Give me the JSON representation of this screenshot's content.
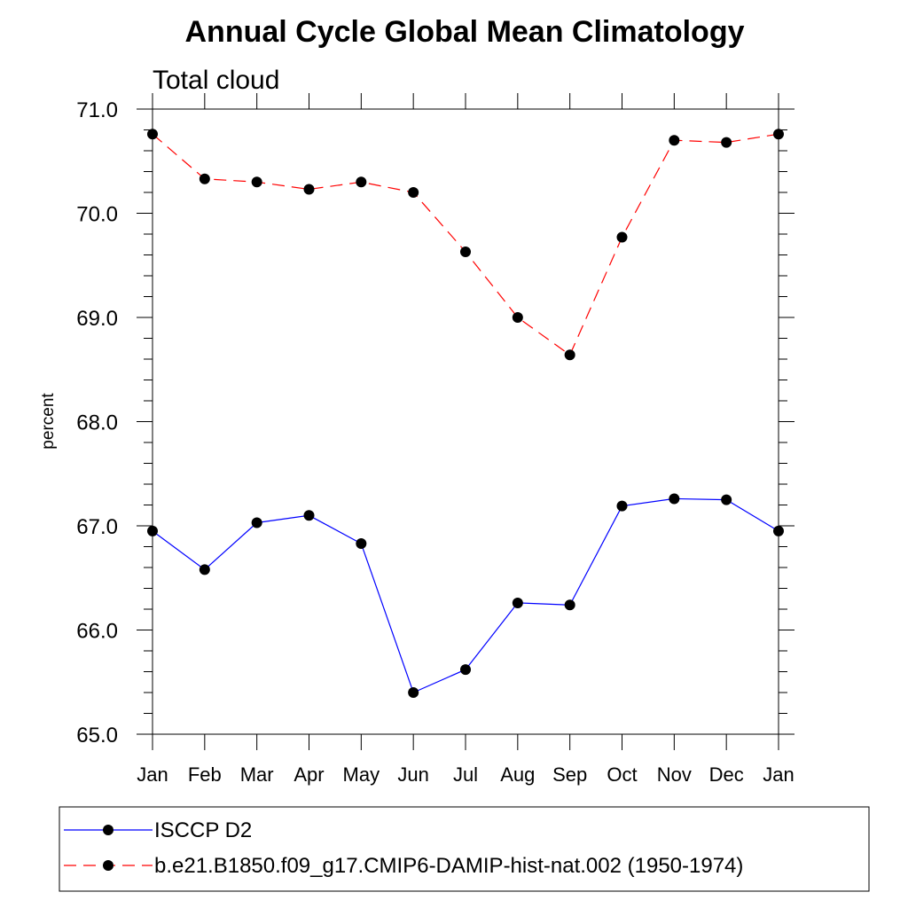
{
  "chart_data": {
    "type": "line",
    "title": "Annual Cycle Global Mean Climatology",
    "subtitle": "Total cloud",
    "xlabel": "",
    "ylabel": "percent",
    "categories": [
      "Jan",
      "Feb",
      "Mar",
      "Apr",
      "May",
      "Jun",
      "Jul",
      "Aug",
      "Sep",
      "Oct",
      "Nov",
      "Dec",
      "Jan"
    ],
    "yticks": [
      "65.0",
      "66.0",
      "67.0",
      "68.0",
      "69.0",
      "70.0",
      "71.0"
    ],
    "ylim": [
      65.0,
      71.0
    ],
    "grid": false,
    "legend_position": "bottom",
    "series": [
      {
        "name": "ISCCP D2",
        "color": "#0000ff",
        "line_style": "solid",
        "marker": "filled-circle",
        "values": [
          66.95,
          66.58,
          67.03,
          67.1,
          66.83,
          65.4,
          65.62,
          66.26,
          66.24,
          67.19,
          67.26,
          67.25,
          66.95
        ]
      },
      {
        "name": "b.e21.B1850.f09_g17.CMIP6-DAMIP-hist-nat.002 (1950-1974)",
        "color": "#ff0000",
        "line_style": "dashed",
        "marker": "filled-circle",
        "values": [
          70.76,
          70.33,
          70.3,
          70.23,
          70.3,
          70.2,
          69.63,
          69.0,
          68.64,
          69.77,
          70.7,
          70.68,
          70.76
        ]
      }
    ]
  }
}
